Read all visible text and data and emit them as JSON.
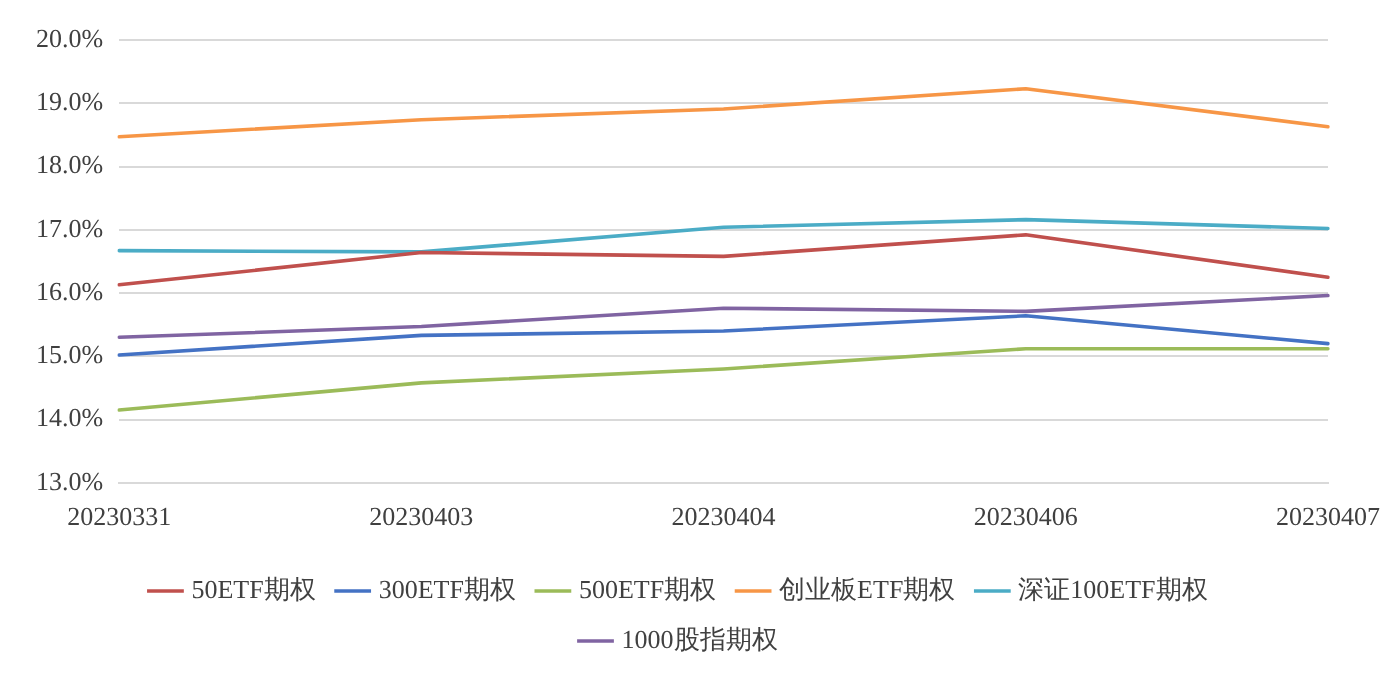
{
  "chart_data": {
    "type": "line",
    "categories": [
      "20230331",
      "20230403",
      "20230404",
      "20230406",
      "20230407"
    ],
    "series": [
      {
        "name": "50ETF期权",
        "color": "#c0504d",
        "values": [
          16.13,
          16.64,
          16.58,
          16.92,
          16.25
        ]
      },
      {
        "name": "300ETF期权",
        "color": "#4472c4",
        "values": [
          15.02,
          15.33,
          15.4,
          15.64,
          15.2
        ]
      },
      {
        "name": "500ETF期权",
        "color": "#9bbb59",
        "values": [
          14.15,
          14.58,
          14.8,
          15.12,
          15.12
        ]
      },
      {
        "name": "创业板ETF期权",
        "color": "#f79646",
        "values": [
          18.47,
          18.74,
          18.91,
          19.23,
          18.63
        ]
      },
      {
        "name": "深证100ETF期权",
        "color": "#4bacc6",
        "values": [
          16.67,
          16.65,
          17.04,
          17.16,
          17.02
        ]
      },
      {
        "name": "1000股指期权",
        "color": "#8064a2",
        "values": [
          15.3,
          15.47,
          15.76,
          15.71,
          15.96
        ]
      }
    ],
    "ylim": [
      13,
      20
    ],
    "yticks": [
      {
        "value": 13,
        "label": "13.0%"
      },
      {
        "value": 14,
        "label": "14.0%"
      },
      {
        "value": 15,
        "label": "15.0%"
      },
      {
        "value": 16,
        "label": "16.0%"
      },
      {
        "value": 17,
        "label": "17.0%"
      },
      {
        "value": 18,
        "label": "18.0%"
      },
      {
        "value": 19,
        "label": "19.0%"
      },
      {
        "value": 20,
        "label": "20.0%"
      }
    ],
    "grid": "y",
    "legend": "bottom",
    "marker": "none",
    "line_style": "solid"
  }
}
